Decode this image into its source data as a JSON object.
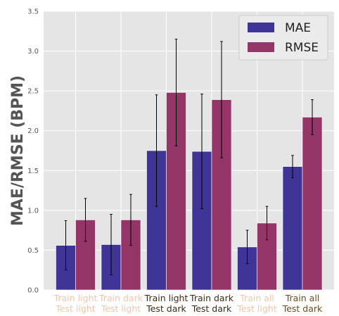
{
  "chart_data": {
    "type": "bar",
    "ylabel": "MAE/RMSE (BPM)",
    "ylim": [
      0,
      3.5
    ],
    "yticks": [
      "0.0",
      "0.5",
      "1.0",
      "1.5",
      "2.0",
      "2.5",
      "3.0",
      "3.5"
    ],
    "grid": true,
    "legend_placement": "top-right",
    "categories": [
      {
        "line1": "Train light",
        "line2": "Test light",
        "color": "#f2c5a8"
      },
      {
        "line1": "Train dark",
        "line2": "Test light",
        "color": "#f2c5a8"
      },
      {
        "line1": "Train light",
        "line2": "Test dark",
        "color": "#3d2a14"
      },
      {
        "line1": "Train dark",
        "line2": "Test dark",
        "color": "#3d2a14"
      },
      {
        "line1": "Train all",
        "line2": "Test light",
        "color": "#f2c5a8"
      },
      {
        "line1": "Train all",
        "line2": "Test dark",
        "color": "#6e4a1e"
      }
    ],
    "series": [
      {
        "name": "MAE",
        "color": "#3e3596",
        "values": [
          0.56,
          0.57,
          1.75,
          1.74,
          0.54,
          1.55
        ],
        "err_low": [
          0.25,
          0.19,
          1.05,
          1.02,
          0.33,
          1.41
        ],
        "err_high": [
          0.87,
          0.95,
          2.45,
          2.46,
          0.75,
          1.69
        ]
      },
      {
        "name": "RMSE",
        "color": "#933566",
        "values": [
          0.88,
          0.88,
          2.48,
          2.39,
          0.84,
          2.17
        ],
        "err_low": [
          0.61,
          0.56,
          1.81,
          1.66,
          0.63,
          1.95
        ],
        "err_high": [
          1.15,
          1.2,
          3.15,
          3.12,
          1.05,
          2.39
        ]
      }
    ]
  }
}
